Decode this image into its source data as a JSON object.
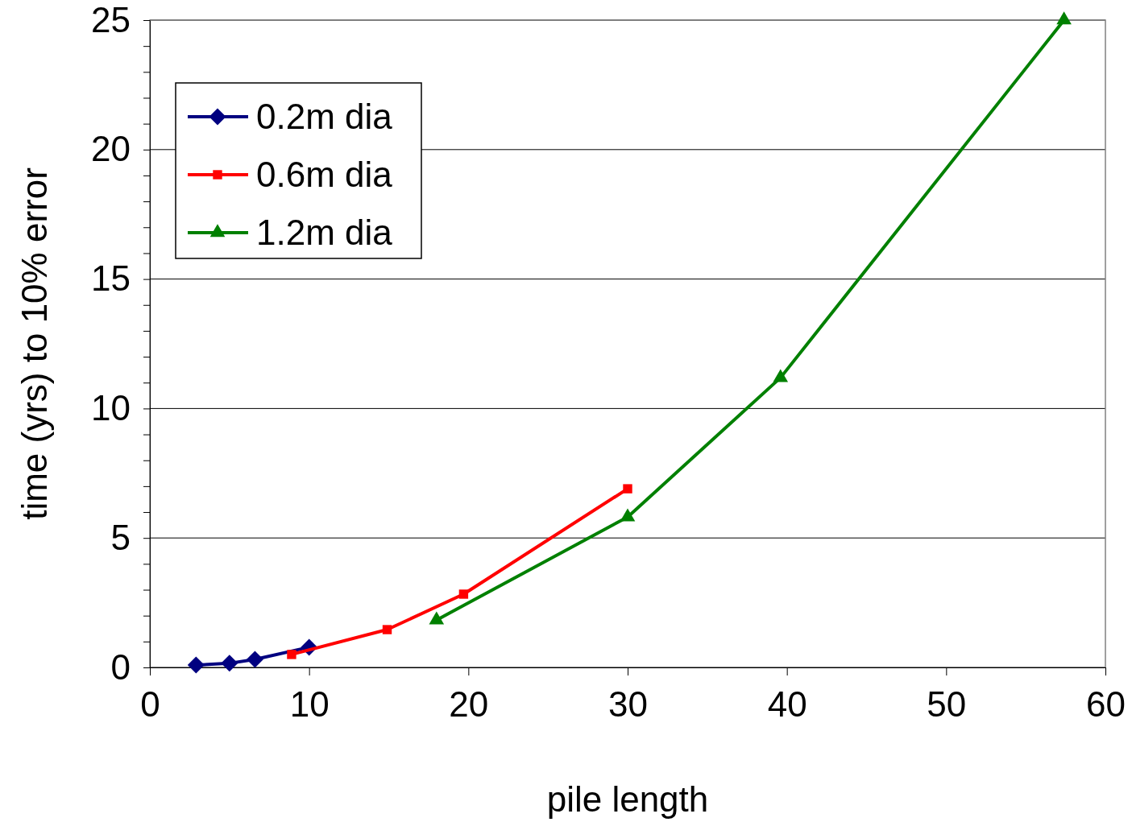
{
  "chart_data": {
    "type": "line",
    "xlabel": "pile length",
    "ylabel": "time (yrs) to 10% error",
    "xlim": [
      0,
      60
    ],
    "xticks": [
      0,
      10,
      20,
      30,
      40,
      50,
      60
    ],
    "ylim": [
      0,
      25
    ],
    "yticks": [
      0,
      {
        "value": 1,
        "label": null
      },
      {
        "value": 2,
        "label": null
      },
      {
        "value": 3,
        "label": null
      },
      {
        "value": 4,
        "label": null
      },
      5,
      {
        "value": 6,
        "label": null
      },
      {
        "value": 7,
        "label": null
      },
      {
        "value": 8,
        "label": null
      },
      {
        "value": 9,
        "label": null
      },
      10,
      {
        "value": 11,
        "label": null
      },
      {
        "value": 12,
        "label": null
      },
      {
        "value": 13,
        "label": null
      },
      {
        "value": 14,
        "label": null
      },
      15,
      {
        "value": 16,
        "label": null
      },
      {
        "value": 17,
        "label": null
      },
      {
        "value": 18,
        "label": null
      },
      {
        "value": 19,
        "label": null
      },
      20,
      {
        "value": 21,
        "label": null
      },
      {
        "value": 22,
        "label": null
      },
      {
        "value": 23,
        "label": null
      },
      {
        "value": 24,
        "label": null
      },
      25
    ],
    "grid": "y",
    "legend": "top left",
    "series": [
      {
        "name": "0.2m dia",
        "color": "#000080",
        "marker": "diamond",
        "x": [
          2.9,
          5.0,
          6.6,
          10.0
        ],
        "values": [
          0.09,
          0.16,
          0.31,
          0.78
        ]
      },
      {
        "name": "0.6m dia",
        "color": "#ff0000",
        "marker": "square",
        "x": [
          8.9,
          14.9,
          19.7,
          30.0
        ],
        "values": [
          0.5,
          1.46,
          2.83,
          6.9
        ]
      },
      {
        "name": "1.2m dia",
        "color": "#008000",
        "marker": "triangle",
        "x": [
          18.0,
          30.0,
          39.6,
          57.4
        ],
        "values": [
          1.83,
          5.81,
          11.19,
          25
        ]
      }
    ]
  }
}
